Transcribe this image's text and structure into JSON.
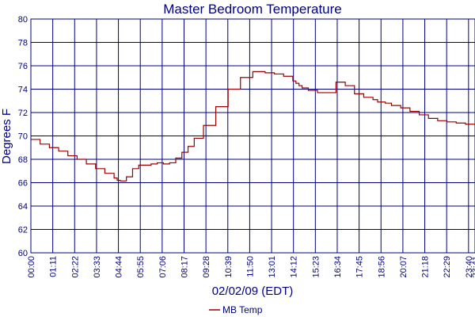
{
  "chart_data": {
    "type": "line",
    "title": "Master Bedroom Temperature",
    "xlabel": "02/02/09 (EDT)",
    "ylabel": "Degrees F",
    "ylim": [
      60,
      80
    ],
    "yticks": [
      "60",
      "62",
      "64",
      "66",
      "68",
      "70",
      "72",
      "74",
      "76",
      "78",
      "80"
    ],
    "xlim": [
      0,
      1441
    ],
    "xticks": [
      "00:00",
      "01:11",
      "02:22",
      "03:33",
      "04:44",
      "05:55",
      "07:06",
      "08:17",
      "09:28",
      "10:39",
      "11:50",
      "13:01",
      "14:12",
      "15:23",
      "16:34",
      "17:45",
      "18:56",
      "20:07",
      "21:18",
      "22:29",
      "23:40",
      "23:41"
    ],
    "grid": true,
    "legend_position": "bottom-center",
    "series": [
      {
        "name": "MB Temp",
        "color": "#990000",
        "step": true,
        "x": [
          0,
          30,
          60,
          90,
          120,
          150,
          180,
          210,
          240,
          270,
          280,
          290,
          310,
          330,
          350,
          370,
          390,
          410,
          430,
          450,
          470,
          490,
          510,
          530,
          560,
          600,
          640,
          680,
          720,
          760,
          790,
          820,
          850,
          860,
          870,
          880,
          900,
          930,
          960,
          990,
          1020,
          1050,
          1080,
          1110,
          1125,
          1140,
          1150,
          1170,
          1200,
          1230,
          1260,
          1290,
          1320,
          1350,
          1380,
          1410,
          1430,
          1441
        ],
        "values": [
          69.7,
          69.3,
          69.0,
          68.7,
          68.3,
          68.0,
          67.6,
          67.2,
          66.8,
          66.4,
          66.2,
          66.15,
          66.5,
          67.2,
          67.5,
          67.5,
          67.6,
          67.7,
          67.6,
          67.7,
          68.1,
          68.6,
          69.1,
          69.8,
          70.9,
          72.5,
          74.0,
          75.0,
          75.5,
          75.4,
          75.3,
          75.1,
          74.7,
          74.5,
          74.3,
          74.1,
          73.9,
          73.7,
          73.7,
          74.6,
          74.3,
          73.6,
          73.3,
          73.1,
          72.9,
          72.9,
          72.8,
          72.6,
          72.4,
          72.1,
          71.8,
          71.5,
          71.3,
          71.2,
          71.1,
          71.0,
          71.0,
          70.9
        ]
      }
    ]
  }
}
